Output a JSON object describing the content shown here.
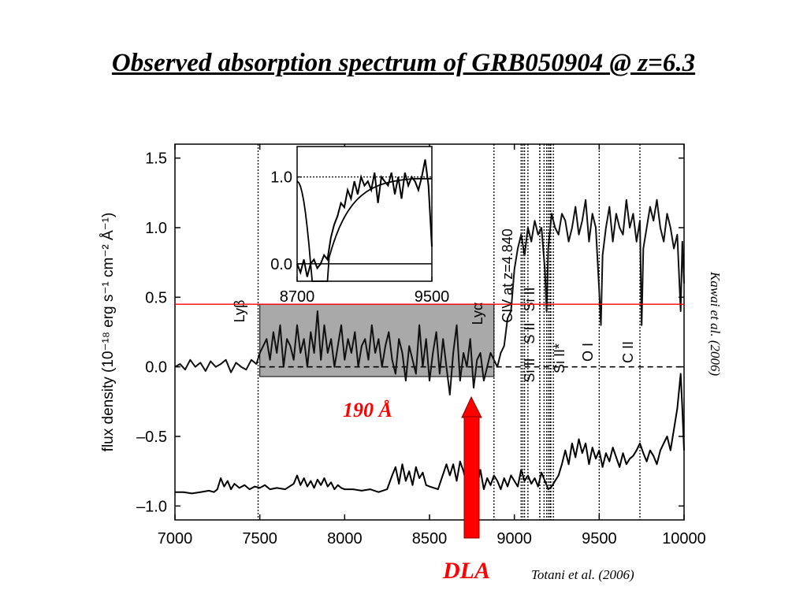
{
  "slide": {
    "title": "Observed absorption spectrum of GRB050904 @ z=6.3",
    "credit_top": "Kawai et al. (2006)",
    "credit_bottom": "Totani et al. (2006)",
    "dla_label": "DLA",
    "gap_label": "190 Å",
    "arrow_color": "#ff0000",
    "highlight_line_color": "#ff0000",
    "shade_color": "#a9a9a9"
  },
  "chart_data": [
    {
      "type": "line",
      "xlabel": "",
      "ylabel": "flux density (10⁻¹⁸ erg s⁻¹ cm⁻² Å⁻¹)",
      "xlim": [
        7000,
        10000
      ],
      "ylim": [
        -1.1,
        1.6
      ],
      "xticks": [
        "7000",
        "7500",
        "8000",
        "8500",
        "9000",
        "9500",
        "10000"
      ],
      "yticks": [
        "1.5",
        "1.0",
        "0.5",
        "0.0",
        "–0.5",
        "–1.0"
      ],
      "ytick_values": [
        1.5,
        1.0,
        0.5,
        0.0,
        -0.5,
        -1.0
      ],
      "xtick_values": [
        7000,
        7500,
        8000,
        8500,
        9000,
        9500,
        10000
      ],
      "horizontal_reference": 0.45,
      "shaded_region": {
        "x": [
          7500,
          8880
        ],
        "y": [
          -0.07,
          0.45
        ]
      },
      "line_annotations": [
        {
          "label": "Lyβ",
          "x": 7490
        },
        {
          "label": "Lyα",
          "x": 8880
        },
        {
          "label": "CIV at z=4.840",
          "x": 9050
        },
        {
          "label": "Si II",
          "x": 9040
        },
        {
          "label": "S II",
          "x": 9080
        },
        {
          "label": "Si II",
          "x": 9150
        },
        {
          "label": "Si II*",
          "x": 9210
        },
        {
          "label": "O I",
          "x": 9500
        },
        {
          "label": "C II",
          "x": 9740
        }
      ],
      "extra_dotted_lines": [
        9060,
        9150,
        9175,
        9190,
        9200,
        9215,
        9230
      ],
      "series": [
        {
          "values_x": [
            7000,
            7030,
            7060,
            7090,
            7120,
            7150,
            7180,
            7210,
            7240,
            7270,
            7300,
            7330,
            7360,
            7390,
            7420,
            7450,
            7480,
            7500,
            7520,
            7540,
            7560,
            7580,
            7600,
            7620,
            7640,
            7660,
            7680,
            7700,
            7720,
            7740,
            7760,
            7780,
            7800,
            7820,
            7840,
            7860,
            7880,
            7900,
            7920,
            7940,
            7960,
            7980,
            8000,
            8020,
            8040,
            8060,
            8080,
            8100,
            8120,
            8140,
            8160,
            8180,
            8200,
            8220,
            8240,
            8260,
            8280,
            8300,
            8320,
            8340,
            8360,
            8380,
            8400,
            8420,
            8440,
            8460,
            8480,
            8500,
            8520,
            8540,
            8560,
            8580,
            8600,
            8620,
            8640,
            8660,
            8680,
            8700,
            8720,
            8740,
            8760,
            8780,
            8800,
            8820,
            8840,
            8860,
            8880,
            8900,
            8920,
            8940,
            8960,
            8980,
            9000,
            9020,
            9040,
            9060,
            9080,
            9100,
            9120,
            9140,
            9160,
            9180,
            9190,
            9200,
            9220,
            9240,
            9260,
            9280,
            9300,
            9320,
            9340,
            9360,
            9380,
            9400,
            9420,
            9440,
            9460,
            9480,
            9500,
            9510,
            9520,
            9540,
            9560,
            9580,
            9600,
            9620,
            9640,
            9660,
            9680,
            9700,
            9720,
            9740,
            9750,
            9760,
            9780,
            9800,
            9820,
            9840,
            9860,
            9880,
            9900,
            9920,
            9940,
            9960,
            9980,
            9990,
            10000
          ],
          "values_y": [
            0.0,
            0.02,
            -0.02,
            0.05,
            0.0,
            0.03,
            -0.03,
            0.04,
            0.0,
            0.02,
            0.05,
            -0.04,
            0.03,
            0.0,
            -0.02,
            0.05,
            0.02,
            0.1,
            0.15,
            0.2,
            0.05,
            0.25,
            0.1,
            0.3,
            0.0,
            0.2,
            0.15,
            0.05,
            0.3,
            0.1,
            0.2,
            0.0,
            0.25,
            0.1,
            0.4,
            0.05,
            0.3,
            0.1,
            0.2,
            0.0,
            0.15,
            0.3,
            0.05,
            0.2,
            0.1,
            0.25,
            0.0,
            0.15,
            0.2,
            0.05,
            0.3,
            0.1,
            0.2,
            0.0,
            0.15,
            0.25,
            0.05,
            -0.05,
            0.2,
            0.1,
            -0.1,
            0.15,
            0.05,
            -0.05,
            0.3,
            0.0,
            0.2,
            -0.1,
            0.1,
            0.25,
            -0.05,
            0.2,
            0.0,
            -0.2,
            0.1,
            0.3,
            -0.1,
            0.1,
            0.0,
            0.2,
            -0.15,
            0.05,
            0.1,
            -0.1,
            0.0,
            0.1,
            0.05,
            0.0,
            0.1,
            0.15,
            0.35,
            0.4,
            0.7,
            0.85,
            0.95,
            0.8,
            1.0,
            0.9,
            1.05,
            0.95,
            1.0,
            0.7,
            0.4,
            0.85,
            1.1,
            1.0,
            0.95,
            1.1,
            1.05,
            0.9,
            1.0,
            1.15,
            0.95,
            1.05,
            1.2,
            0.9,
            1.1,
            1.0,
            0.55,
            0.3,
            0.8,
            1.0,
            1.15,
            0.9,
            1.1,
            1.0,
            0.95,
            1.2,
            1.0,
            1.1,
            0.9,
            1.05,
            0.3,
            0.85,
            1.0,
            1.15,
            1.05,
            1.2,
            1.0,
            0.9,
            1.1,
            1.0,
            0.85,
            0.95,
            0.4,
            0.9,
            0.6
          ]
        },
        {
          "values_x": [
            7000,
            7050,
            7100,
            7150,
            7200,
            7230,
            7250,
            7270,
            7290,
            7310,
            7330,
            7350,
            7380,
            7410,
            7440,
            7470,
            7500,
            7530,
            7560,
            7600,
            7650,
            7700,
            7720,
            7740,
            7760,
            7780,
            7800,
            7820,
            7840,
            7860,
            7880,
            7900,
            7920,
            7940,
            7960,
            7980,
            8000,
            8050,
            8100,
            8150,
            8200,
            8250,
            8280,
            8300,
            8320,
            8340,
            8360,
            8380,
            8400,
            8420,
            8440,
            8460,
            8480,
            8500,
            8550,
            8600,
            8620,
            8640,
            8660,
            8680,
            8700,
            8720,
            8740,
            8760,
            8780,
            8800,
            8820,
            8840,
            8860,
            8880,
            8900,
            8920,
            8940,
            8960,
            8980,
            9000,
            9020,
            9040,
            9060,
            9080,
            9100,
            9120,
            9140,
            9160,
            9180,
            9200,
            9220,
            9240,
            9260,
            9280,
            9300,
            9320,
            9340,
            9360,
            9380,
            9400,
            9420,
            9440,
            9460,
            9480,
            9500,
            9520,
            9540,
            9560,
            9580,
            9600,
            9620,
            9640,
            9660,
            9680,
            9700,
            9720,
            9740,
            9760,
            9780,
            9800,
            9820,
            9840,
            9860,
            9880,
            9900,
            9920,
            9940,
            9960,
            9980,
            9990,
            10000
          ],
          "values_y": [
            -0.9,
            -0.9,
            -0.91,
            -0.9,
            -0.89,
            -0.9,
            -0.88,
            -0.8,
            -0.86,
            -0.82,
            -0.88,
            -0.84,
            -0.87,
            -0.85,
            -0.88,
            -0.86,
            -0.87,
            -0.85,
            -0.88,
            -0.87,
            -0.88,
            -0.84,
            -0.78,
            -0.85,
            -0.8,
            -0.86,
            -0.82,
            -0.87,
            -0.81,
            -0.85,
            -0.8,
            -0.86,
            -0.83,
            -0.88,
            -0.85,
            -0.87,
            -0.88,
            -0.88,
            -0.89,
            -0.88,
            -0.9,
            -0.88,
            -0.78,
            -0.72,
            -0.84,
            -0.7,
            -0.82,
            -0.75,
            -0.85,
            -0.72,
            -0.8,
            -0.76,
            -0.85,
            -0.86,
            -0.88,
            -0.7,
            -0.78,
            -0.7,
            -0.82,
            -0.68,
            -0.75,
            -0.85,
            -0.78,
            -0.72,
            -0.86,
            -0.74,
            -0.88,
            -0.8,
            -0.85,
            -0.78,
            -0.82,
            -0.88,
            -0.8,
            -0.86,
            -0.78,
            -0.82,
            -0.86,
            -0.74,
            -0.82,
            -0.78,
            -0.84,
            -0.8,
            -0.86,
            -0.76,
            -0.82,
            -0.88,
            -0.86,
            -0.82,
            -0.78,
            -0.7,
            -0.6,
            -0.7,
            -0.55,
            -0.65,
            -0.52,
            -0.62,
            -0.55,
            -0.7,
            -0.58,
            -0.66,
            -0.6,
            -0.72,
            -0.62,
            -0.68,
            -0.58,
            -0.65,
            -0.72,
            -0.62,
            -0.7,
            -0.66,
            -0.64,
            -0.6,
            -0.55,
            -0.62,
            -0.68,
            -0.6,
            -0.64,
            -0.7,
            -0.6,
            -0.55,
            -0.5,
            -0.6,
            -0.45,
            -0.3,
            -0.05,
            -0.3,
            -0.6
          ]
        }
      ]
    },
    {
      "type": "line",
      "xlim": [
        8700,
        9500
      ],
      "ylim": [
        -0.2,
        1.35
      ],
      "xticks": [
        "8700",
        "9500"
      ],
      "xtick_values": [
        8700,
        9500
      ],
      "yticks": [
        "1.0",
        "0.0"
      ],
      "ytick_values": [
        1.0,
        0.0
      ],
      "series": [
        {
          "values_x": [
            8700,
            8720,
            8740,
            8760,
            8780,
            8800,
            8820,
            8840,
            8860,
            8880,
            8900,
            8920,
            8940,
            8960,
            8980,
            9000,
            9020,
            9040,
            9060,
            9080,
            9100,
            9120,
            9140,
            9160,
            9180,
            9200,
            9220,
            9240,
            9260,
            9280,
            9300,
            9320,
            9340,
            9360,
            9380,
            9400,
            9420,
            9440,
            9460,
            9480,
            9500
          ],
          "values_y": [
            0.0,
            -0.1,
            0.05,
            -0.15,
            0.0,
            0.05,
            -0.05,
            0.0,
            0.1,
            0.05,
            0.3,
            0.45,
            0.55,
            0.7,
            0.65,
            0.85,
            0.75,
            0.95,
            0.8,
            1.0,
            0.9,
            0.95,
            0.85,
            1.05,
            0.7,
            1.0,
            0.95,
            0.9,
            1.05,
            0.8,
            1.0,
            0.75,
            1.05,
            0.9,
            1.0,
            0.95,
            0.85,
            1.0,
            1.2,
            0.9,
            0.2
          ]
        }
      ]
    }
  ]
}
